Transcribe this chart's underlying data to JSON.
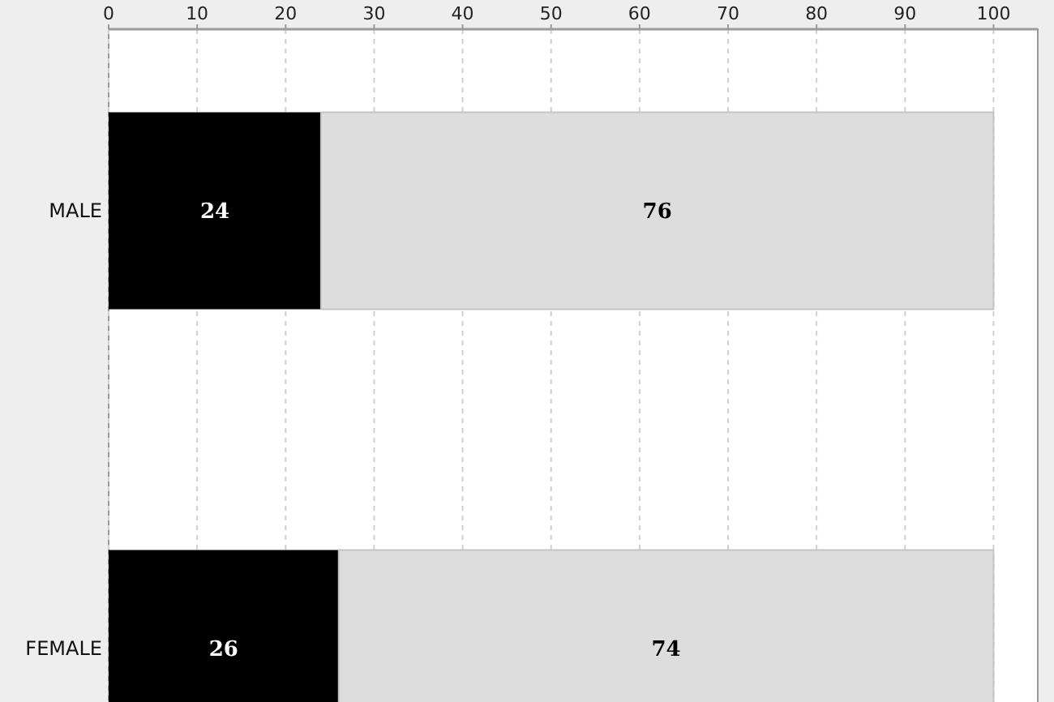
{
  "chart_data": {
    "type": "bar",
    "orientation": "horizontal",
    "stacked": true,
    "categories": [
      "MALE",
      "FEMALE"
    ],
    "series": [
      {
        "color": "#000000",
        "values": [
          24,
          26
        ]
      },
      {
        "color": "#dddddd",
        "values": [
          76,
          74
        ]
      }
    ],
    "xlim": [
      0,
      105
    ],
    "xticks": [
      0,
      10,
      20,
      30,
      40,
      50,
      60,
      70,
      80,
      90,
      100
    ],
    "grid": "x",
    "data_labels": true
  }
}
